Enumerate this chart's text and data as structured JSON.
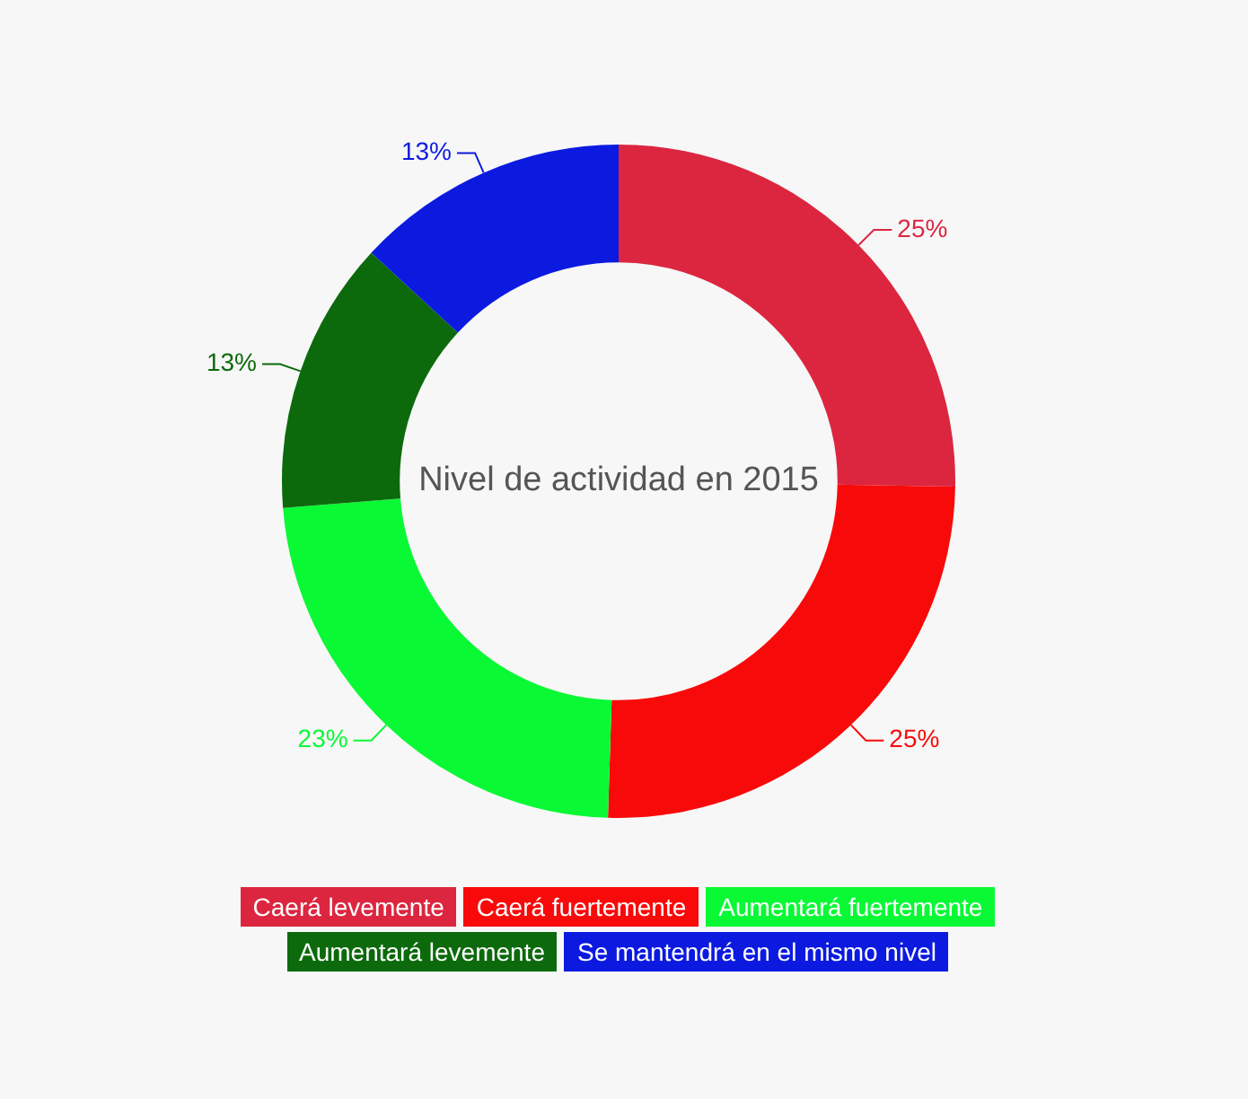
{
  "chart_data": {
    "type": "donut",
    "title": "Nivel de actividad en 2015",
    "categories": [
      "Caerá levemente",
      "Caerá fuertemente",
      "Aumentará fuertemente",
      "Aumentará levemente",
      "Se mantendrá en el mismo nivel"
    ],
    "values": [
      25,
      25,
      23,
      13,
      13
    ],
    "colors": [
      "#dc2640",
      "#f90a0a",
      "#0af935",
      "#0c6a0c",
      "#0c1ae0"
    ],
    "value_labels": [
      "25%",
      "25%",
      "23%",
      "13%",
      "13%"
    ],
    "legend": "bottom"
  }
}
